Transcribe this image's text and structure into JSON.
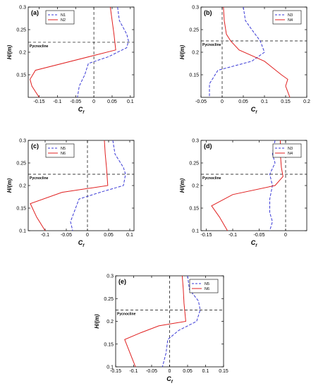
{
  "panels": [
    {
      "label": "(a)",
      "xlim": [
        -0.18,
        0.11
      ],
      "xticks": [
        -0.15,
        -0.1,
        -0.05,
        0,
        0.05,
        0.1
      ],
      "xtick_labels": [
        "-0.15",
        "-0.1",
        "-0.05",
        "0",
        "0.05",
        "0.1"
      ],
      "ylim": [
        0.1,
        0.3
      ],
      "yticks": [
        0.15,
        0.2,
        0.25,
        0.3
      ],
      "ytick_labels": [
        "0.15",
        "0.2",
        "0.25",
        "0.3"
      ],
      "xlabel": "C",
      "xlabel_sub": "f",
      "ylabel": "H/(m)",
      "pycnocline_label": "Pycnocline",
      "pycnocline_y": 0.222,
      "legend_pos": "top-left",
      "series": [
        {
          "name": "N1",
          "style": "dashed",
          "color": "#3a3ad6",
          "points": [
            [
              0.065,
              0.3
            ],
            [
              0.07,
              0.27
            ],
            [
              0.09,
              0.24
            ],
            [
              0.095,
              0.225
            ],
            [
              0.09,
              0.21
            ],
            [
              0.04,
              0.19
            ],
            [
              -0.015,
              0.175
            ],
            [
              -0.025,
              0.15
            ],
            [
              -0.04,
              0.125
            ],
            [
              -0.045,
              0.1
            ]
          ]
        },
        {
          "name": "N2",
          "style": "solid",
          "color": "#e02020",
          "points": [
            [
              0.045,
              0.3
            ],
            [
              0.05,
              0.27
            ],
            [
              0.055,
              0.24
            ],
            [
              0.06,
              0.205
            ],
            [
              -0.16,
              0.16
            ],
            [
              -0.175,
              0.14
            ],
            [
              -0.17,
              0.125
            ],
            [
              -0.15,
              0.1
            ]
          ]
        }
      ]
    },
    {
      "label": "(b)",
      "xlim": [
        -0.05,
        0.2
      ],
      "xticks": [
        -0.05,
        0,
        0.05,
        0.1,
        0.15,
        0.2
      ],
      "xtick_labels": [
        "-0.05",
        "0",
        "0.05",
        "0.1",
        "0.15",
        "0.2"
      ],
      "ylim": [
        0.1,
        0.3
      ],
      "yticks": [
        0.15,
        0.2,
        0.25,
        0.3
      ],
      "ytick_labels": [
        "0.15",
        "0.2",
        "0.25",
        "0.3"
      ],
      "xlabel": "C",
      "xlabel_sub": "f",
      "ylabel": "H/(m)",
      "pycnocline_label": "Pycnocline",
      "pycnocline_y": 0.225,
      "legend_pos": "top-right",
      "series": [
        {
          "name": "N3",
          "style": "dashed",
          "color": "#3a3ad6",
          "points": [
            [
              0.05,
              0.3
            ],
            [
              0.055,
              0.27
            ],
            [
              0.07,
              0.25
            ],
            [
              0.09,
              0.225
            ],
            [
              0.1,
              0.2
            ],
            [
              0.07,
              0.18
            ],
            [
              -0.01,
              0.16
            ],
            [
              -0.03,
              0.13
            ],
            [
              -0.03,
              0.1
            ]
          ]
        },
        {
          "name": "N4",
          "style": "solid",
          "color": "#e02020",
          "points": [
            [
              0.003,
              0.3
            ],
            [
              0.005,
              0.27
            ],
            [
              0.01,
              0.24
            ],
            [
              0.02,
              0.225
            ],
            [
              0.04,
              0.205
            ],
            [
              0.1,
              0.18
            ],
            [
              0.14,
              0.15
            ],
            [
              0.155,
              0.14
            ],
            [
              0.15,
              0.125
            ],
            [
              0.16,
              0.1
            ]
          ]
        }
      ]
    },
    {
      "label": "(c)",
      "xlim": [
        -0.14,
        0.11
      ],
      "xticks": [
        -0.1,
        -0.05,
        0,
        0.05,
        0.1
      ],
      "xtick_labels": [
        "-0.1",
        "-0.05",
        "0",
        "0.05",
        "0.1"
      ],
      "ylim": [
        0.1,
        0.3
      ],
      "yticks": [
        0.1,
        0.15,
        0.2,
        0.25,
        0.3
      ],
      "ytick_labels": [
        "0.1",
        "0.15",
        "0.2",
        "0.25",
        "0.3"
      ],
      "xlabel": "C",
      "xlabel_sub": "f",
      "ylabel": "H/(m)",
      "pycnocline_label": "Pycnocline",
      "pycnocline_y": 0.225,
      "legend_pos": "top-left",
      "series": [
        {
          "name": "N5",
          "style": "dashed",
          "color": "#3a3ad6",
          "points": [
            [
              0.06,
              0.3
            ],
            [
              0.065,
              0.27
            ],
            [
              0.085,
              0.24
            ],
            [
              0.09,
              0.225
            ],
            [
              0.085,
              0.2
            ],
            [
              0.03,
              0.185
            ],
            [
              -0.02,
              0.17
            ],
            [
              -0.03,
              0.145
            ],
            [
              -0.04,
              0.12
            ],
            [
              -0.035,
              0.1
            ]
          ]
        },
        {
          "name": "N6",
          "style": "solid",
          "color": "#e02020",
          "points": [
            [
              0.04,
              0.3
            ],
            [
              0.042,
              0.27
            ],
            [
              0.045,
              0.24
            ],
            [
              0.048,
              0.2
            ],
            [
              -0.06,
              0.185
            ],
            [
              -0.135,
              0.16
            ],
            [
              -0.12,
              0.13
            ],
            [
              -0.1,
              0.1
            ]
          ]
        }
      ]
    },
    {
      "label": "(d)",
      "xlim": [
        -0.16,
        0.04
      ],
      "xticks": [
        -0.15,
        -0.1,
        -0.05,
        0
      ],
      "xtick_labels": [
        "-0.15",
        "-0.1",
        "-0.05",
        "0"
      ],
      "ylim": [
        0.1,
        0.3
      ],
      "yticks": [
        0.1,
        0.15,
        0.2,
        0.25,
        0.3
      ],
      "ytick_labels": [
        "0.1",
        "0.15",
        "0.2",
        "0.25",
        "0.3"
      ],
      "xlabel": "C",
      "xlabel_sub": "f",
      "ylabel": "H/(m)",
      "pycnocline_label": "Pycnocline",
      "pycnocline_y": 0.225,
      "legend_pos": "top-right",
      "series": [
        {
          "name": "N3",
          "style": "dashed",
          "color": "#3a3ad6",
          "points": [
            [
              -0.02,
              0.3
            ],
            [
              -0.025,
              0.27
            ],
            [
              -0.02,
              0.25
            ],
            [
              -0.03,
              0.225
            ],
            [
              -0.025,
              0.2
            ],
            [
              -0.03,
              0.17
            ],
            [
              -0.03,
              0.14
            ],
            [
              -0.025,
              0.12
            ],
            [
              -0.03,
              0.1
            ]
          ]
        },
        {
          "name": "N4",
          "style": "solid",
          "color": "#e02020",
          "points": [
            [
              -0.01,
              0.3
            ],
            [
              -0.01,
              0.27
            ],
            [
              -0.008,
              0.24
            ],
            [
              -0.005,
              0.22
            ],
            [
              -0.02,
              0.2
            ],
            [
              -0.1,
              0.18
            ],
            [
              -0.14,
              0.155
            ],
            [
              -0.125,
              0.13
            ],
            [
              -0.11,
              0.1
            ]
          ]
        }
      ]
    },
    {
      "label": "(e)",
      "xlim": [
        -0.15,
        0.15
      ],
      "xticks": [
        -0.15,
        -0.1,
        -0.05,
        0,
        0.05,
        0.1,
        0.15
      ],
      "xtick_labels": [
        "-0.15",
        "-0.1",
        "-0.05",
        "0",
        "0.05",
        "0.1",
        "0.15"
      ],
      "ylim": [
        0.1,
        0.3
      ],
      "yticks": [
        0.1,
        0.15,
        0.2,
        0.25,
        0.3
      ],
      "ytick_labels": [
        "0.1",
        "0.15",
        "0.2",
        "0.25",
        "0.3"
      ],
      "xlabel": "C",
      "xlabel_sub": "f",
      "ylabel": "H/(m)",
      "pycnocline_label": "Pycnocline",
      "pycnocline_y": 0.225,
      "legend_pos": "top-right",
      "series": [
        {
          "name": "N5",
          "style": "dashed",
          "color": "#3a3ad6",
          "points": [
            [
              0.05,
              0.3
            ],
            [
              0.055,
              0.27
            ],
            [
              0.08,
              0.245
            ],
            [
              0.085,
              0.225
            ],
            [
              0.075,
              0.2
            ],
            [
              0.025,
              0.18
            ],
            [
              -0.005,
              0.16
            ],
            [
              -0.01,
              0.13
            ],
            [
              -0.02,
              0.1
            ]
          ]
        },
        {
          "name": "N6",
          "style": "solid",
          "color": "#e02020",
          "points": [
            [
              0.035,
              0.3
            ],
            [
              0.038,
              0.27
            ],
            [
              0.04,
              0.24
            ],
            [
              0.045,
              0.2
            ],
            [
              -0.03,
              0.19
            ],
            [
              -0.08,
              0.175
            ],
            [
              -0.125,
              0.16
            ],
            [
              -0.11,
              0.13
            ],
            [
              -0.095,
              0.1
            ]
          ]
        }
      ]
    }
  ],
  "chart_data": [
    {
      "type": "line",
      "label": "(a)",
      "xlabel": "Cf",
      "ylabel": "H/(m)",
      "xlim": [
        -0.18,
        0.11
      ],
      "ylim": [
        0.1,
        0.3
      ],
      "annotation": "Pycnocline",
      "legend": "top-left",
      "series": [
        {
          "name": "N1",
          "x": [
            0.065,
            0.07,
            0.09,
            0.095,
            0.09,
            0.04,
            -0.015,
            -0.025,
            -0.04,
            -0.045
          ],
          "y": [
            0.3,
            0.27,
            0.24,
            0.225,
            0.21,
            0.19,
            0.175,
            0.15,
            0.125,
            0.1
          ]
        },
        {
          "name": "N2",
          "x": [
            0.045,
            0.05,
            0.055,
            0.06,
            -0.16,
            -0.175,
            -0.17,
            -0.15
          ],
          "y": [
            0.3,
            0.27,
            0.24,
            0.205,
            0.16,
            0.14,
            0.125,
            0.1
          ]
        }
      ]
    },
    {
      "type": "line",
      "label": "(b)",
      "xlabel": "Cf",
      "ylabel": "H/(m)",
      "xlim": [
        -0.05,
        0.2
      ],
      "ylim": [
        0.1,
        0.3
      ],
      "annotation": "Pycnocline",
      "legend": "top-right",
      "series": [
        {
          "name": "N3",
          "x": [
            0.05,
            0.055,
            0.07,
            0.09,
            0.1,
            0.07,
            -0.01,
            -0.03,
            -0.03
          ],
          "y": [
            0.3,
            0.27,
            0.25,
            0.225,
            0.2,
            0.18,
            0.16,
            0.13,
            0.1
          ]
        },
        {
          "name": "N4",
          "x": [
            0.003,
            0.005,
            0.01,
            0.02,
            0.04,
            0.1,
            0.14,
            0.155,
            0.15,
            0.16
          ],
          "y": [
            0.3,
            0.27,
            0.24,
            0.225,
            0.205,
            0.18,
            0.15,
            0.14,
            0.125,
            0.1
          ]
        }
      ]
    },
    {
      "type": "line",
      "label": "(c)",
      "xlabel": "Cf",
      "ylabel": "H/(m)",
      "xlim": [
        -0.14,
        0.11
      ],
      "ylim": [
        0.1,
        0.3
      ],
      "annotation": "Pycnocline",
      "legend": "top-left",
      "series": [
        {
          "name": "N5",
          "x": [
            0.06,
            0.065,
            0.085,
            0.09,
            0.085,
            0.03,
            -0.02,
            -0.03,
            -0.04,
            -0.035
          ],
          "y": [
            0.3,
            0.27,
            0.24,
            0.225,
            0.2,
            0.185,
            0.17,
            0.145,
            0.12,
            0.1
          ]
        },
        {
          "name": "N6",
          "x": [
            0.04,
            0.042,
            0.045,
            0.048,
            -0.06,
            -0.135,
            -0.12,
            -0.1
          ],
          "y": [
            0.3,
            0.27,
            0.24,
            0.2,
            0.185,
            0.16,
            0.13,
            0.1
          ]
        }
      ]
    },
    {
      "type": "line",
      "label": "(d)",
      "xlabel": "Cf",
      "ylabel": "H/(m)",
      "xlim": [
        -0.16,
        0.04
      ],
      "ylim": [
        0.1,
        0.3
      ],
      "annotation": "Pycnocline",
      "legend": "top-right",
      "series": [
        {
          "name": "N3",
          "x": [
            -0.02,
            -0.025,
            -0.02,
            -0.03,
            -0.025,
            -0.03,
            -0.03,
            -0.025,
            -0.03
          ],
          "y": [
            0.3,
            0.27,
            0.25,
            0.225,
            0.2,
            0.17,
            0.14,
            0.12,
            0.1
          ]
        },
        {
          "name": "N4",
          "x": [
            -0.01,
            -0.01,
            -0.008,
            -0.005,
            -0.02,
            -0.1,
            -0.14,
            -0.125,
            -0.11
          ],
          "y": [
            0.3,
            0.27,
            0.24,
            0.22,
            0.2,
            0.18,
            0.155,
            0.13,
            0.1
          ]
        }
      ]
    },
    {
      "type": "line",
      "label": "(e)",
      "xlabel": "Cf",
      "ylabel": "H/(m)",
      "xlim": [
        -0.15,
        0.15
      ],
      "ylim": [
        0.1,
        0.3
      ],
      "annotation": "Pycnocline",
      "legend": "top-right",
      "series": [
        {
          "name": "N5",
          "x": [
            0.05,
            0.055,
            0.08,
            0.085,
            0.075,
            0.025,
            -0.005,
            -0.01,
            -0.02
          ],
          "y": [
            0.3,
            0.27,
            0.245,
            0.225,
            0.2,
            0.18,
            0.16,
            0.13,
            0.1
          ]
        },
        {
          "name": "N6",
          "x": [
            0.035,
            0.038,
            0.04,
            0.045,
            -0.03,
            -0.08,
            -0.125,
            -0.11,
            -0.095
          ],
          "y": [
            0.3,
            0.27,
            0.24,
            0.2,
            0.19,
            0.175,
            0.16,
            0.13,
            0.1
          ]
        }
      ]
    }
  ]
}
